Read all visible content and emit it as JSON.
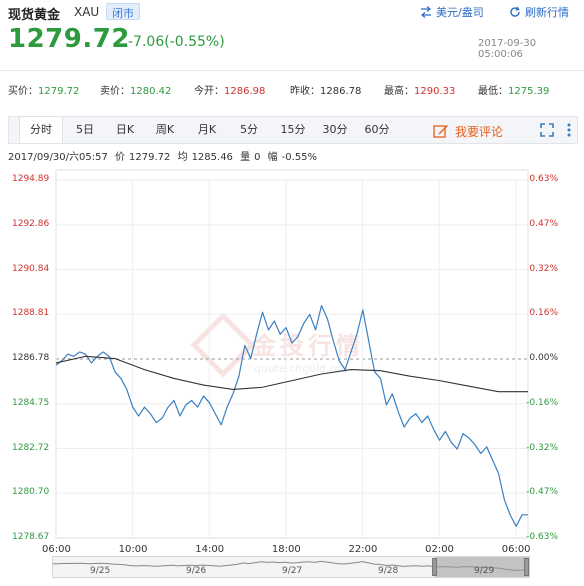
{
  "header": {
    "title": "现货黄金",
    "symbol": "XAU",
    "status": "闭市",
    "unit_link": "美元/盎司",
    "refresh_link": "刷新行情",
    "price": "1279.72",
    "change": "-7.06(-0.55%)",
    "timestamp": "2017-09-30 05:00:06"
  },
  "quotes": [
    {
      "label": "买价：",
      "value": "1279.72",
      "tone": "green"
    },
    {
      "label": "卖价：",
      "value": "1280.42",
      "tone": "green"
    },
    {
      "label": "今开：",
      "value": "1286.98",
      "tone": "red"
    },
    {
      "label": "昨收：",
      "value": "1286.78",
      "tone": "dark"
    },
    {
      "label": "最高：",
      "value": "1290.33",
      "tone": "red"
    },
    {
      "label": "最低：",
      "value": "1275.39",
      "tone": "green"
    }
  ],
  "tabs": [
    "分时",
    "5日",
    "日K",
    "周K",
    "月K",
    "5分",
    "15分",
    "30分",
    "60分"
  ],
  "active_tab": "分时",
  "comment_button": "我要评论",
  "info_bar": {
    "datetime": "2017/09/30/六05:57",
    "price_label": "价",
    "price": "1279.72",
    "avg_label": "均",
    "avg": "1285.46",
    "vol_label": "量",
    "vol": "0",
    "range_label": "幅",
    "range": "-0.55%"
  },
  "watermark": {
    "text": "金投行情",
    "url": "quote.cngold.org"
  },
  "colors": {
    "up": "#d0312d",
    "down": "#2e9a3e",
    "line": "#3a7fc1",
    "avg": "#333333"
  },
  "chart_data": {
    "type": "line",
    "y_left_ticks": [
      "1294.89",
      "1292.86",
      "1290.84",
      "1288.81",
      "1286.78",
      "1284.75",
      "1282.72",
      "1280.70",
      "1278.67"
    ],
    "y_right_ticks": [
      "0.63%",
      "0.47%",
      "0.32%",
      "0.16%",
      "0.00%",
      "-0.16%",
      "-0.32%",
      "-0.47%",
      "-0.63%"
    ],
    "ylim": [
      1278.67,
      1294.89
    ],
    "baseline": 1286.78,
    "x_ticks": [
      "06:00",
      "10:00",
      "14:00",
      "18:00",
      "22:00",
      "02:00",
      "06:00"
    ],
    "grid": true,
    "series": [
      {
        "role": "price",
        "x_hours": [
          0,
          0.4,
          0.8,
          1.2,
          1.6,
          2.0,
          2.4,
          2.8,
          3.2,
          3.6,
          4.0,
          4.4,
          4.8,
          5.2,
          5.6,
          6.0,
          6.4,
          6.8,
          7.2,
          7.6,
          8.0,
          8.4,
          8.8,
          9.2,
          9.6,
          10.0,
          10.4,
          10.8,
          11.2,
          11.6,
          12.0,
          12.4,
          12.8,
          13.2,
          13.6,
          14.0,
          14.4,
          14.8,
          15.2,
          15.6,
          16.0,
          16.4,
          16.8,
          17.2,
          17.6,
          18.0,
          18.4,
          18.8,
          19.2,
          19.6,
          20.0,
          20.4,
          20.8,
          21.2,
          21.6,
          22.0,
          22.4,
          22.8,
          23.2,
          23.6,
          24.0,
          24.4,
          24.8,
          25.2,
          25.6,
          26.0,
          26.4,
          26.8,
          27.2,
          27.6,
          28.0,
          28.4,
          28.8,
          29.2,
          29.6,
          30.0,
          30.4,
          30.8,
          31.2,
          31.6,
          32.0
        ],
        "values": [
          1286.5,
          1286.7,
          1287.0,
          1286.9,
          1287.1,
          1287.0,
          1286.6,
          1286.9,
          1287.1,
          1286.9,
          1286.2,
          1285.9,
          1285.4,
          1284.6,
          1284.2,
          1284.6,
          1284.3,
          1283.9,
          1284.1,
          1284.6,
          1284.9,
          1284.2,
          1284.7,
          1284.9,
          1284.6,
          1285.1,
          1284.8,
          1284.3,
          1283.8,
          1284.6,
          1285.2,
          1286.0,
          1287.4,
          1286.8,
          1287.9,
          1288.9,
          1288.1,
          1288.5,
          1287.9,
          1288.2,
          1287.5,
          1287.8,
          1288.4,
          1288.8,
          1288.1,
          1289.2,
          1288.6,
          1287.6,
          1286.7,
          1286.3,
          1287.1,
          1287.9,
          1289.0,
          1287.6,
          1286.2,
          1285.9,
          1284.7,
          1285.2,
          1284.4,
          1283.7,
          1284.1,
          1284.3,
          1283.9,
          1284.2,
          1283.6,
          1283.1,
          1283.5,
          1283.0,
          1282.7,
          1283.4,
          1283.2,
          1282.9,
          1282.5,
          1282.8,
          1282.2,
          1281.6,
          1280.4,
          1279.7,
          1279.2,
          1279.72,
          1279.72
        ]
      },
      {
        "role": "average",
        "x_hours": [
          0,
          2,
          4,
          6,
          8,
          10,
          12,
          14,
          16,
          18,
          20,
          22,
          24,
          26,
          28,
          30,
          32
        ],
        "values": [
          1286.6,
          1286.9,
          1286.8,
          1286.3,
          1285.9,
          1285.6,
          1285.4,
          1285.5,
          1285.8,
          1286.1,
          1286.3,
          1286.25,
          1286.0,
          1285.8,
          1285.55,
          1285.3,
          1285.3
        ]
      }
    ],
    "navigator": {
      "labels": [
        "9/25",
        "9/26",
        "9/27",
        "9/28",
        "9/29"
      ]
    }
  }
}
